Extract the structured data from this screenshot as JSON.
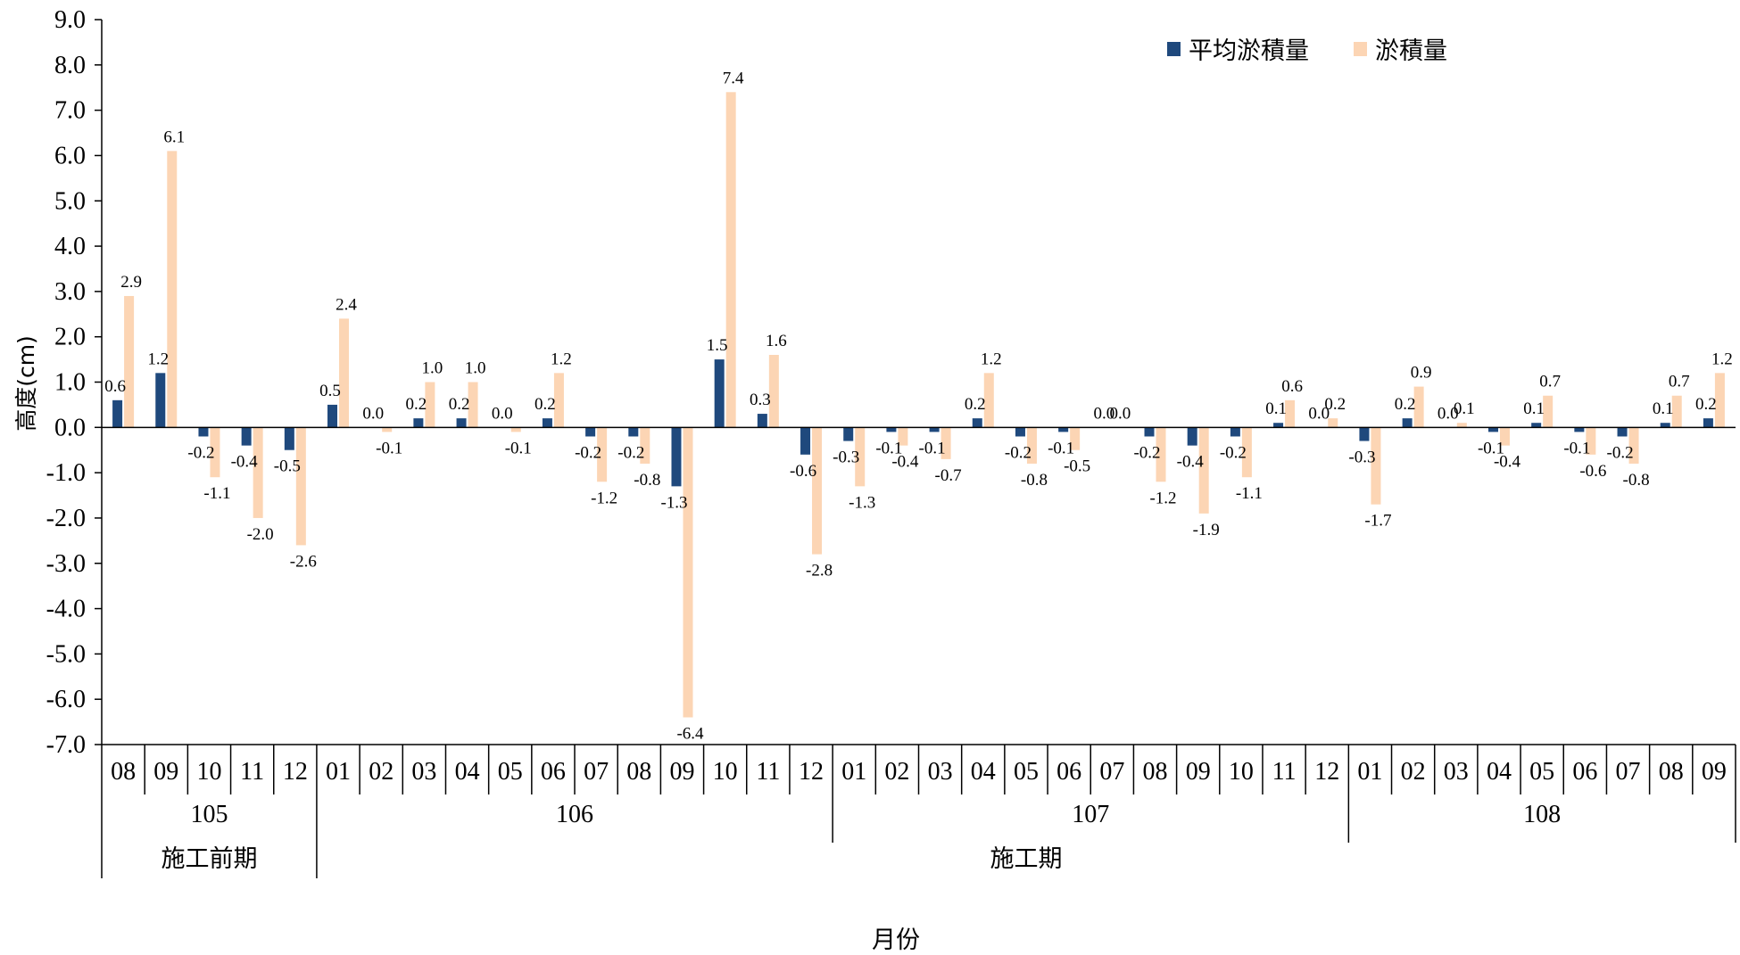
{
  "chart_data": {
    "type": "bar",
    "title": "",
    "ylabel": "高度(cm)",
    "xlabel": "月份",
    "ylim": [
      -7.0,
      9.0
    ],
    "ytick_step": 1.0,
    "yticks": [
      "9.0",
      "8.0",
      "7.0",
      "6.0",
      "5.0",
      "4.0",
      "3.0",
      "2.0",
      "1.0",
      "0.0",
      "-1.0",
      "-2.0",
      "-3.0",
      "-4.0",
      "-5.0",
      "-6.0",
      "-7.0"
    ],
    "legend_position": "top-right",
    "categories": [
      "08",
      "09",
      "10",
      "11",
      "12",
      "01",
      "02",
      "03",
      "04",
      "05",
      "06",
      "07",
      "08",
      "09",
      "10",
      "11",
      "12",
      "01",
      "02",
      "03",
      "04",
      "05",
      "06",
      "07",
      "08",
      "09",
      "10",
      "11",
      "12",
      "01",
      "02",
      "03",
      "04",
      "05",
      "06",
      "07",
      "08",
      "09"
    ],
    "years": [
      {
        "label": "105",
        "start": 0,
        "end": 4
      },
      {
        "label": "106",
        "start": 5,
        "end": 16
      },
      {
        "label": "107",
        "start": 17,
        "end": 28
      },
      {
        "label": "108",
        "start": 29,
        "end": 37
      }
    ],
    "periods": [
      {
        "label": "施工前期",
        "start": 0,
        "end": 4
      },
      {
        "label": "施工期",
        "start": 5,
        "end": 37
      }
    ],
    "series": [
      {
        "name": "平均淤積量",
        "color": "#1f497d",
        "values": [
          0.6,
          1.2,
          -0.2,
          -0.4,
          -0.5,
          0.5,
          0.0,
          0.2,
          0.2,
          0.0,
          0.2,
          -0.2,
          -0.2,
          -1.3,
          1.5,
          0.3,
          -0.6,
          -0.3,
          -0.1,
          -0.1,
          0.2,
          -0.2,
          -0.1,
          0.0,
          -0.2,
          -0.4,
          -0.2,
          0.1,
          0.0,
          -0.3,
          0.2,
          0.0,
          -0.1,
          0.1,
          -0.1,
          -0.2,
          0.1,
          0.2
        ]
      },
      {
        "name": "淤積量",
        "color": "#fcd5b4",
        "values": [
          2.9,
          6.1,
          -1.1,
          -2.0,
          -2.6,
          2.4,
          -0.1,
          1.0,
          1.0,
          -0.1,
          1.2,
          -1.2,
          -0.8,
          -6.4,
          7.4,
          1.6,
          -2.8,
          -1.3,
          -0.4,
          -0.7,
          1.2,
          -0.8,
          -0.5,
          0.0,
          -1.2,
          -1.9,
          -1.1,
          0.6,
          0.2,
          -1.7,
          0.9,
          0.1,
          -0.4,
          0.7,
          -0.6,
          -0.8,
          0.7,
          1.2
        ]
      }
    ]
  }
}
